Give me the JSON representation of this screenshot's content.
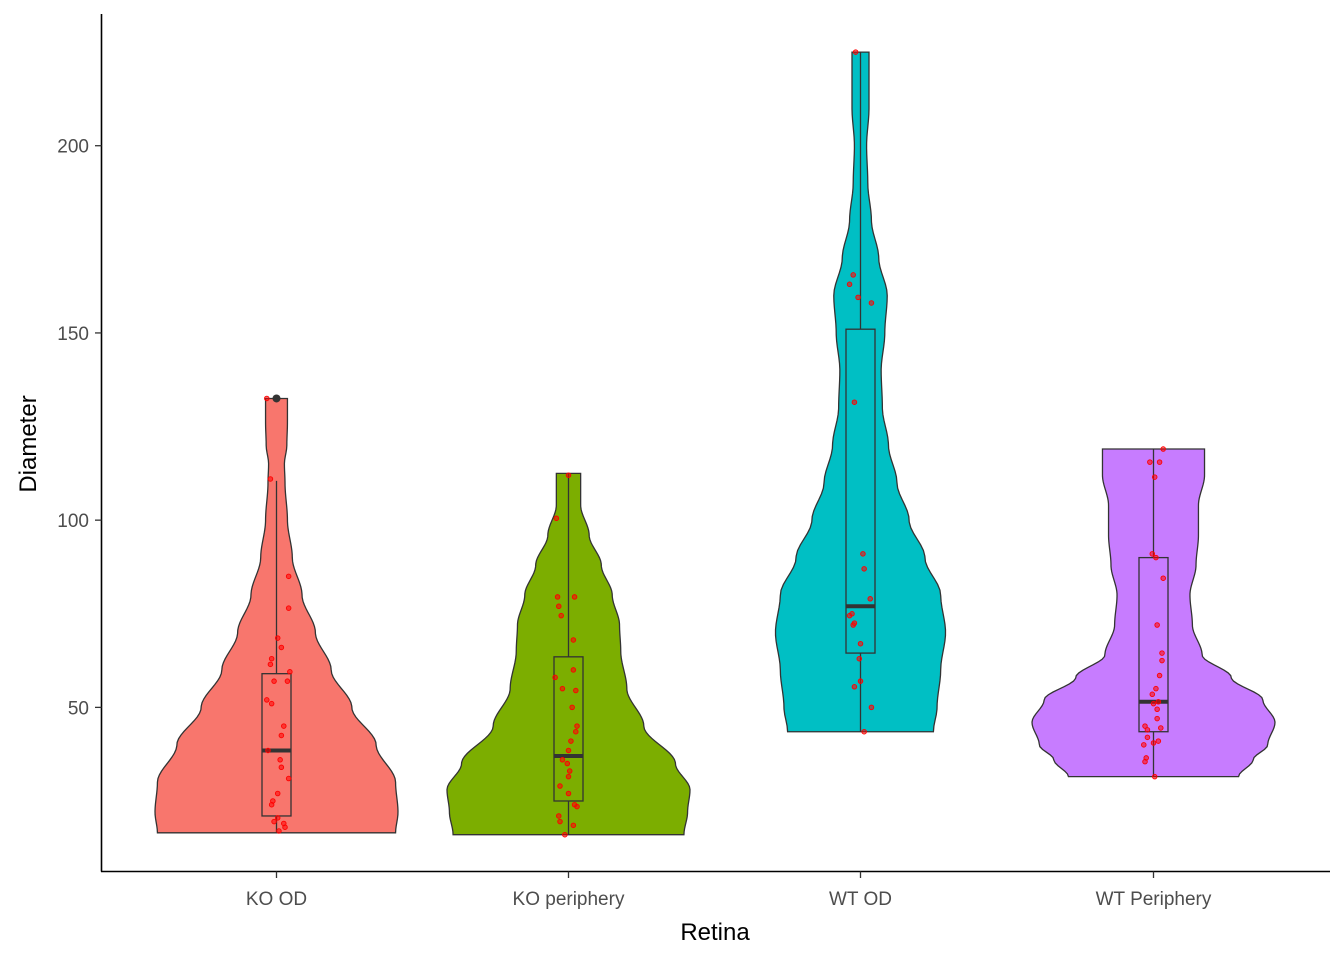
{
  "chart_data": {
    "type": "violin",
    "xlabel": "Retina",
    "ylabel": "Diameter",
    "ylim": [
      5,
      230
    ],
    "yticks": [
      50,
      100,
      150,
      200
    ],
    "grid": false,
    "legend": "none",
    "point_color": "#ff0000",
    "categories": [
      "KO OD",
      "KO periphery",
      "WT OD",
      "WT Periphery"
    ],
    "groups": [
      {
        "name": "KO OD",
        "color": "#f8766d",
        "min": 16.5,
        "max": 132.5,
        "density": [
          [
            16.5,
            0.98
          ],
          [
            22,
            1.0
          ],
          [
            30,
            0.98
          ],
          [
            40,
            0.82
          ],
          [
            50,
            0.62
          ],
          [
            60,
            0.45
          ],
          [
            70,
            0.32
          ],
          [
            80,
            0.21
          ],
          [
            90,
            0.13
          ],
          [
            100,
            0.09
          ],
          [
            110,
            0.07
          ],
          [
            115,
            0.065
          ],
          [
            120,
            0.085
          ],
          [
            126,
            0.09
          ],
          [
            132.5,
            0.09
          ]
        ],
        "box": {
          "q1": 21,
          "median": 38.5,
          "q3": 59,
          "whisker_low": 16.5,
          "whisker_high": 110.5
        },
        "outliers": [
          132.5
        ],
        "points": [
          [
            -0.08,
            132.5
          ],
          [
            -0.05,
            111
          ],
          [
            0.1,
            85
          ],
          [
            0.1,
            76.5
          ],
          [
            0.01,
            68.5
          ],
          [
            0.04,
            66
          ],
          [
            -0.04,
            63
          ],
          [
            -0.05,
            61.5
          ],
          [
            0.11,
            59.5
          ],
          [
            -0.02,
            57
          ],
          [
            0.09,
            57
          ],
          [
            -0.08,
            52
          ],
          [
            -0.04,
            51
          ],
          [
            0.06,
            45
          ],
          [
            0.04,
            42.5
          ],
          [
            -0.07,
            38.5
          ],
          [
            0.03,
            36
          ],
          [
            0.04,
            34
          ],
          [
            0.1,
            31
          ],
          [
            0.01,
            27
          ],
          [
            -0.03,
            25
          ],
          [
            -0.04,
            24
          ],
          [
            0.06,
            19
          ],
          [
            0.07,
            18
          ],
          [
            0.02,
            17
          ],
          [
            -0.02,
            19.5
          ],
          [
            0.01,
            20.5
          ]
        ]
      },
      {
        "name": "KO periphery",
        "color": "#7cae00",
        "min": 16,
        "max": 112.5,
        "density": [
          [
            16,
            0.95
          ],
          [
            22,
            0.98
          ],
          [
            28,
            1.0
          ],
          [
            35,
            0.88
          ],
          [
            45,
            0.62
          ],
          [
            55,
            0.48
          ],
          [
            65,
            0.43
          ],
          [
            72,
            0.42
          ],
          [
            80,
            0.36
          ],
          [
            88,
            0.27
          ],
          [
            96,
            0.17
          ],
          [
            104,
            0.1
          ],
          [
            112.5,
            0.1
          ]
        ],
        "box": {
          "q1": 25,
          "median": 37,
          "q3": 63.5,
          "whisker_low": 16,
          "whisker_high": 112.5
        },
        "outliers": [],
        "points": [
          [
            0.0,
            112
          ],
          [
            -0.1,
            100.5
          ],
          [
            -0.09,
            79.5
          ],
          [
            0.05,
            79.5
          ],
          [
            -0.08,
            77
          ],
          [
            -0.06,
            74.5
          ],
          [
            0.04,
            68
          ],
          [
            0.04,
            60
          ],
          [
            -0.11,
            58
          ],
          [
            -0.05,
            55
          ],
          [
            0.06,
            54.5
          ],
          [
            0.03,
            50
          ],
          [
            0.07,
            45
          ],
          [
            0.06,
            43.5
          ],
          [
            0.02,
            41
          ],
          [
            0.0,
            38.5
          ],
          [
            -0.05,
            36
          ],
          [
            -0.01,
            35
          ],
          [
            0.01,
            33
          ],
          [
            0.0,
            31.5
          ],
          [
            -0.07,
            29
          ],
          [
            0.0,
            27
          ],
          [
            0.05,
            24
          ],
          [
            0.07,
            23.5
          ],
          [
            -0.08,
            21
          ],
          [
            -0.07,
            19.5
          ],
          [
            0.04,
            18.5
          ],
          [
            -0.03,
            16
          ]
        ]
      },
      {
        "name": "WT OD",
        "color": "#00bfc4",
        "min": 43.5,
        "max": 225,
        "density": [
          [
            43.5,
            0.6
          ],
          [
            50,
            0.63
          ],
          [
            60,
            0.66
          ],
          [
            70,
            0.7
          ],
          [
            80,
            0.66
          ],
          [
            90,
            0.53
          ],
          [
            100,
            0.4
          ],
          [
            110,
            0.3
          ],
          [
            120,
            0.23
          ],
          [
            130,
            0.18
          ],
          [
            140,
            0.17
          ],
          [
            150,
            0.2
          ],
          [
            160,
            0.22
          ],
          [
            170,
            0.15
          ],
          [
            180,
            0.09
          ],
          [
            190,
            0.06
          ],
          [
            200,
            0.05
          ],
          [
            210,
            0.07
          ],
          [
            218,
            0.07
          ],
          [
            225,
            0.07
          ]
        ],
        "box": {
          "q1": 64.5,
          "median": 77,
          "q3": 151,
          "whisker_low": 43.5,
          "whisker_high": 225
        },
        "outliers": [],
        "points": [
          [
            -0.04,
            225
          ],
          [
            -0.09,
            163
          ],
          [
            -0.06,
            165.5
          ],
          [
            -0.02,
            159.5
          ],
          [
            0.09,
            158
          ],
          [
            -0.05,
            131.5
          ],
          [
            0.02,
            91
          ],
          [
            0.03,
            87
          ],
          [
            0.08,
            79
          ],
          [
            -0.09,
            74.5
          ],
          [
            -0.07,
            75
          ],
          [
            -0.05,
            72.5
          ],
          [
            -0.06,
            72
          ],
          [
            0.0,
            67
          ],
          [
            -0.01,
            63
          ],
          [
            0.0,
            57
          ],
          [
            -0.05,
            55.5
          ],
          [
            0.09,
            50
          ],
          [
            0.03,
            43.5
          ]
        ]
      },
      {
        "name": "WT Periphery",
        "color": "#c77cff",
        "min": 31.5,
        "max": 119,
        "density": [
          [
            31.5,
            0.7
          ],
          [
            36,
            0.82
          ],
          [
            40,
            0.94
          ],
          [
            46,
            1.0
          ],
          [
            52,
            0.9
          ],
          [
            58,
            0.64
          ],
          [
            64,
            0.4
          ],
          [
            72,
            0.32
          ],
          [
            80,
            0.3
          ],
          [
            88,
            0.35
          ],
          [
            96,
            0.37
          ],
          [
            104,
            0.37
          ],
          [
            112,
            0.42
          ],
          [
            119,
            0.42
          ]
        ],
        "box": {
          "q1": 43.5,
          "median": 51.5,
          "q3": 90,
          "whisker_low": 31.5,
          "whisker_high": 119
        },
        "outliers": [],
        "points": [
          [
            0.08,
            119
          ],
          [
            -0.03,
            115.5
          ],
          [
            0.05,
            115.5
          ],
          [
            0.01,
            111.5
          ],
          [
            -0.01,
            91
          ],
          [
            0.02,
            90
          ],
          [
            0.08,
            84.5
          ],
          [
            0.03,
            72
          ],
          [
            0.07,
            64.5
          ],
          [
            0.07,
            62.5
          ],
          [
            0.05,
            58.5
          ],
          [
            0.02,
            55
          ],
          [
            -0.01,
            53.5
          ],
          [
            0.04,
            51.5
          ],
          [
            0.0,
            51
          ],
          [
            0.03,
            49.5
          ],
          [
            0.03,
            47
          ],
          [
            -0.07,
            45
          ],
          [
            0.06,
            44.5
          ],
          [
            -0.05,
            44
          ],
          [
            -0.05,
            42
          ],
          [
            0.04,
            41
          ],
          [
            0.0,
            40.5
          ],
          [
            -0.08,
            40
          ],
          [
            -0.06,
            36.5
          ],
          [
            -0.07,
            35.5
          ],
          [
            0.01,
            31.5
          ]
        ]
      }
    ]
  }
}
